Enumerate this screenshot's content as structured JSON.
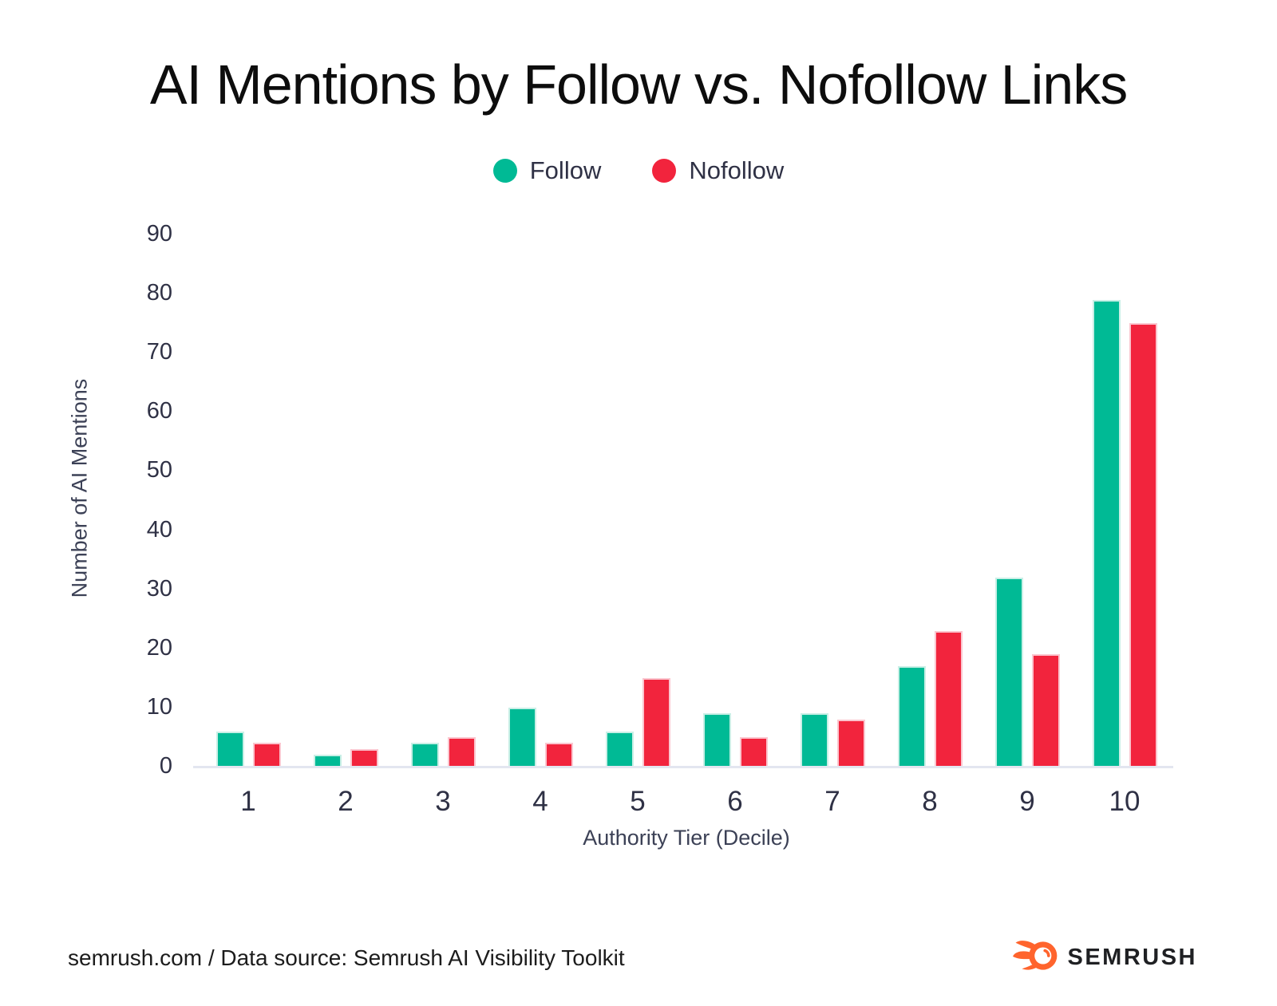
{
  "title": "AI Mentions by Follow vs. Nofollow Links",
  "legend": {
    "items": [
      {
        "label": "Follow",
        "color": "#00BA95"
      },
      {
        "label": "Nofollow",
        "color": "#F2243D"
      }
    ]
  },
  "chart_data": {
    "type": "bar",
    "title": "AI Mentions by Follow vs. Nofollow Links",
    "categories": [
      "1",
      "2",
      "3",
      "4",
      "5",
      "6",
      "7",
      "8",
      "9",
      "10"
    ],
    "series": [
      {
        "name": "Follow",
        "color": "#00BA95",
        "border": "#C9EFE6",
        "values": [
          6,
          2,
          4,
          10,
          6,
          9,
          9,
          17,
          32,
          79
        ]
      },
      {
        "name": "Nofollow",
        "color": "#F2243D",
        "border": "#FBC6CF",
        "values": [
          4,
          3,
          5,
          4,
          15,
          5,
          8,
          23,
          19,
          75
        ]
      }
    ],
    "xlabel": "Authority Tier (Decile)",
    "ylabel": "Number of AI Mentions",
    "ylim": [
      0,
      90
    ],
    "yticks": [
      0,
      10,
      20,
      30,
      40,
      50,
      60,
      70,
      80,
      90
    ],
    "grid": false,
    "legend_position": "top"
  },
  "footer": {
    "source_text": "semrush.com / Data source: Semrush AI Visibility Toolkit",
    "logo_text": "SEMRUSH"
  },
  "colors": {
    "follow": "#00BA95",
    "nofollow": "#F2243D",
    "axis_line": "#E3E6F0",
    "tick_text": "#2F3145",
    "logo_orange": "#FF642D"
  }
}
